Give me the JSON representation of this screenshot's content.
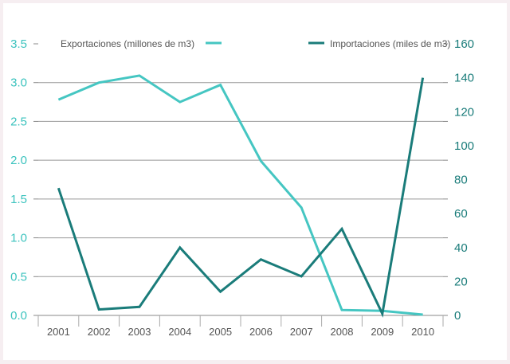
{
  "chart_data": {
    "type": "line",
    "categories": [
      "2001",
      "2002",
      "2003",
      "2004",
      "2005",
      "2006",
      "2007",
      "2008",
      "2009",
      "2010"
    ],
    "y_left": {
      "ticks": [
        "0.0",
        "0.5",
        "1.0",
        "1.5",
        "2.0",
        "2.5",
        "3.0",
        "3.5"
      ],
      "range": [
        0,
        3.5
      ]
    },
    "y_right": {
      "ticks": [
        "0",
        "20",
        "40",
        "60",
        "80",
        "100",
        "120",
        "140",
        "160"
      ],
      "range": [
        0,
        160
      ]
    },
    "grid": true,
    "legend_position": "top",
    "series": [
      {
        "name": "Exportaciones (millones de m3)",
        "axis": "left",
        "color": "#45c6c2",
        "values": [
          2.78,
          3.0,
          3.09,
          2.75,
          2.97,
          1.99,
          1.39,
          0.07,
          0.06,
          0.01
        ]
      },
      {
        "name": "Importaciones (miles de m3)",
        "axis": "right",
        "color": "#1a7c7a",
        "values": [
          75,
          3.5,
          5,
          40,
          14,
          33,
          23,
          51,
          1,
          140
        ]
      }
    ]
  }
}
